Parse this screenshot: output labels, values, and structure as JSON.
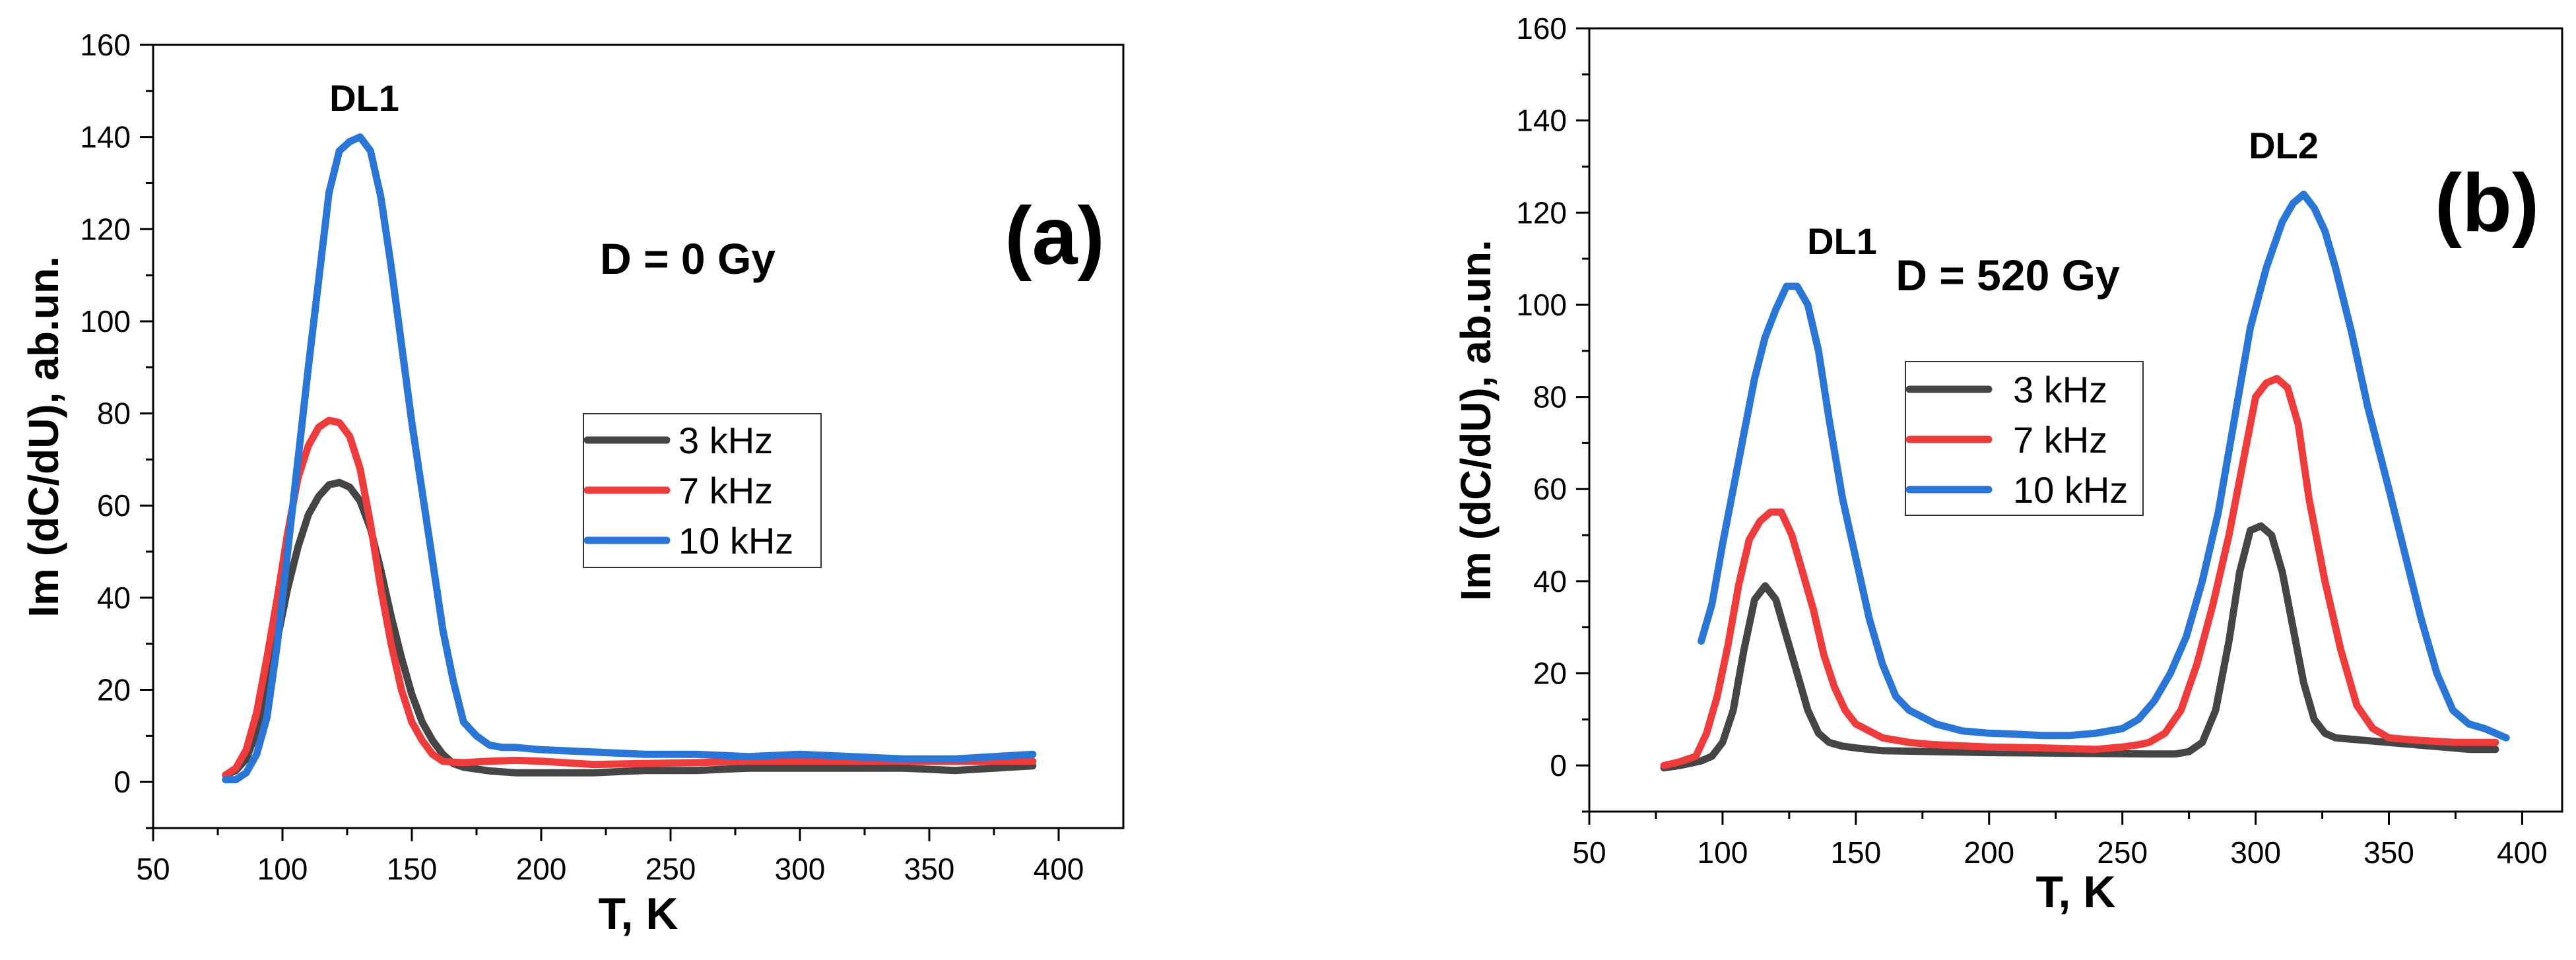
{
  "colors": {
    "series": [
      "#454545",
      "#ee3b3b",
      "#2a76d6"
    ],
    "axis": "#000000",
    "background": "#ffffff"
  },
  "chart_data": [
    {
      "type": "line",
      "panel_label": "(a)",
      "annotation": "D = 0 Gy",
      "peak_labels": [
        {
          "text": "DL1",
          "x": 130,
          "y": 148
        }
      ],
      "xlabel": "T, K",
      "ylabel": "Im (dC/dU), ab.un.",
      "xlim": [
        50,
        425
      ],
      "ylim": [
        -10,
        160
      ],
      "xticks": [
        50,
        100,
        150,
        200,
        250,
        300,
        350,
        400
      ],
      "yticks": [
        0,
        20,
        40,
        60,
        80,
        100,
        120,
        140,
        160
      ],
      "grid": false,
      "legend_position": "center-right",
      "series": [
        {
          "name": "3 kHz",
          "x": [
            78,
            82,
            86,
            90,
            94,
            98,
            102,
            106,
            110,
            114,
            118,
            122,
            126,
            130,
            134,
            138,
            142,
            146,
            150,
            154,
            158,
            162,
            166,
            170,
            175,
            180,
            190,
            200,
            220,
            240,
            260,
            280,
            300,
            320,
            340,
            360,
            375,
            390
          ],
          "y": [
            1.5,
            2.5,
            5,
            11,
            20,
            31,
            42,
            51,
            58,
            62,
            64.5,
            65,
            64,
            61,
            55,
            46,
            36,
            27,
            19,
            13,
            9,
            6,
            4,
            3.2,
            2.8,
            2.4,
            2,
            2,
            2,
            2.5,
            2.5,
            3,
            3,
            3,
            3,
            2.5,
            3,
            3.5
          ]
        },
        {
          "name": "7 kHz",
          "x": [
            78,
            82,
            86,
            90,
            94,
            98,
            102,
            106,
            110,
            114,
            118,
            122,
            126,
            130,
            134,
            138,
            142,
            146,
            150,
            154,
            158,
            162,
            166,
            170,
            180,
            190,
            200,
            220,
            240,
            260,
            280,
            300,
            320,
            340,
            360,
            375,
            390
          ],
          "y": [
            1.5,
            3,
            7,
            15,
            27,
            40,
            54,
            66,
            73,
            77,
            78.5,
            78,
            75,
            68,
            56,
            42,
            30,
            20,
            13,
            9,
            6,
            4.5,
            4.3,
            4.2,
            4.5,
            4.7,
            4.5,
            3.8,
            4,
            4.2,
            4.5,
            4.5,
            4.5,
            4.5,
            4.5,
            4.5,
            4.5
          ]
        },
        {
          "name": "10 kHz",
          "x": [
            78,
            82,
            86,
            90,
            94,
            98,
            102,
            106,
            110,
            114,
            118,
            122,
            126,
            130,
            134,
            138,
            142,
            146,
            150,
            154,
            158,
            162,
            166,
            170,
            175,
            180,
            185,
            190,
            200,
            220,
            240,
            260,
            280,
            300,
            320,
            340,
            350,
            360,
            375,
            390
          ],
          "y": [
            0.5,
            0.5,
            2,
            6,
            14,
            30,
            50,
            70,
            90,
            109,
            128,
            137,
            139,
            140,
            137,
            127,
            112,
            95,
            78,
            63,
            48,
            33,
            22,
            13,
            10,
            8,
            7.5,
            7.5,
            7,
            6.5,
            6,
            6,
            5.5,
            6,
            5.5,
            5,
            5,
            5,
            5.5,
            6
          ]
        }
      ]
    },
    {
      "type": "line",
      "panel_label": "(b)",
      "annotation": "D = 520 Gy",
      "peak_labels": [
        {
          "text": "DL1",
          "x": 120,
          "y": 112
        },
        {
          "text": "DL2",
          "x": 316,
          "y": 133
        }
      ],
      "xlabel": "T, K",
      "ylabel": "Im (dC/dU), ab.un.",
      "xlim": [
        50,
        415
      ],
      "ylim": [
        -10,
        160
      ],
      "xticks": [
        50,
        100,
        150,
        200,
        250,
        300,
        350,
        400
      ],
      "yticks": [
        0,
        20,
        40,
        60,
        80,
        100,
        120,
        140,
        160
      ],
      "grid": false,
      "legend_position": "upper-center",
      "series": [
        {
          "name": "3 kHz",
          "x": [
            78,
            84,
            88,
            92,
            96,
            100,
            104,
            108,
            112,
            116,
            120,
            124,
            128,
            132,
            136,
            140,
            145,
            150,
            160,
            180,
            200,
            220,
            240,
            260,
            270,
            275,
            280,
            285,
            290,
            294,
            298,
            302,
            306,
            310,
            314,
            318,
            322,
            326,
            330,
            340,
            350,
            360,
            370,
            380,
            390
          ],
          "y": [
            -0.5,
            0,
            0.5,
            1,
            2,
            5,
            12,
            25,
            36,
            39,
            36,
            28,
            20,
            12,
            7,
            5,
            4.2,
            3.8,
            3.2,
            3,
            2.8,
            2.7,
            2.6,
            2.5,
            2.5,
            3,
            5,
            12,
            27,
            42,
            51,
            52,
            50,
            42,
            30,
            18,
            10,
            7,
            6,
            5.5,
            5,
            4.5,
            4,
            3.5,
            3.5
          ]
        },
        {
          "name": "7 kHz",
          "x": [
            78,
            84,
            90,
            94,
            98,
            102,
            106,
            110,
            114,
            118,
            122,
            126,
            130,
            134,
            138,
            142,
            146,
            150,
            160,
            170,
            180,
            200,
            220,
            240,
            250,
            256,
            260,
            266,
            272,
            278,
            284,
            290,
            296,
            300,
            304,
            308,
            312,
            316,
            320,
            326,
            332,
            338,
            344,
            350,
            360,
            375,
            390
          ],
          "y": [
            0,
            0.8,
            2,
            7,
            15,
            26,
            39,
            49,
            53,
            55,
            55,
            50,
            42,
            34,
            24,
            17,
            12,
            9,
            6,
            5,
            4.5,
            4,
            3.8,
            3.5,
            4,
            4.5,
            5,
            7,
            12,
            22,
            35,
            50,
            68,
            80,
            83,
            84,
            82,
            74,
            58,
            40,
            25,
            13,
            8,
            6,
            5.5,
            5,
            5
          ]
        },
        {
          "name": "10 kHz",
          "x": [
            92,
            96,
            100,
            104,
            108,
            112,
            116,
            120,
            124,
            128,
            132,
            136,
            140,
            145,
            150,
            155,
            160,
            165,
            170,
            180,
            190,
            200,
            210,
            220,
            230,
            240,
            250,
            256,
            262,
            268,
            274,
            280,
            286,
            292,
            298,
            304,
            310,
            314,
            318,
            322,
            326,
            330,
            336,
            342,
            350,
            356,
            362,
            368,
            374,
            380,
            386,
            394
          ],
          "y": [
            27,
            35,
            48,
            60,
            72,
            84,
            93,
            99,
            104,
            104,
            100,
            90,
            75,
            58,
            45,
            32,
            22,
            15,
            12,
            9,
            7.5,
            7,
            6.8,
            6.5,
            6.5,
            7,
            8,
            10,
            14,
            20,
            28,
            40,
            55,
            75,
            95,
            108,
            118,
            122,
            124,
            121,
            116,
            108,
            94,
            78,
            60,
            46,
            32,
            20,
            12,
            9,
            8,
            6
          ]
        }
      ]
    }
  ]
}
